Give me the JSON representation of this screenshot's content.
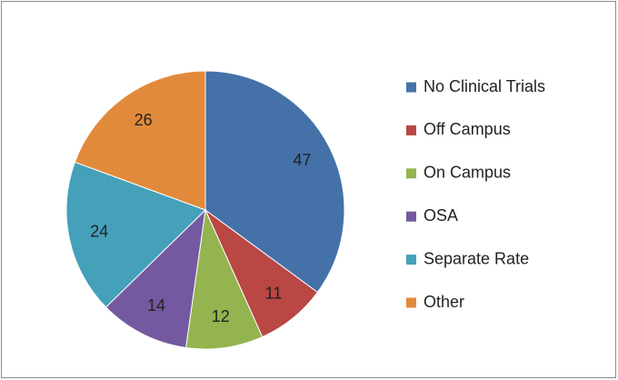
{
  "chart_data": {
    "type": "pie",
    "categories": [
      "No Clinical Trials",
      "Off Campus",
      "On Campus",
      "OSA",
      "Separate Rate",
      "Other"
    ],
    "values": [
      47,
      11,
      12,
      14,
      24,
      26
    ],
    "colors": [
      "#4571a9",
      "#b94744",
      "#94b44f",
      "#7459a0",
      "#45a0ba",
      "#e28a3b"
    ],
    "legend": "right"
  }
}
